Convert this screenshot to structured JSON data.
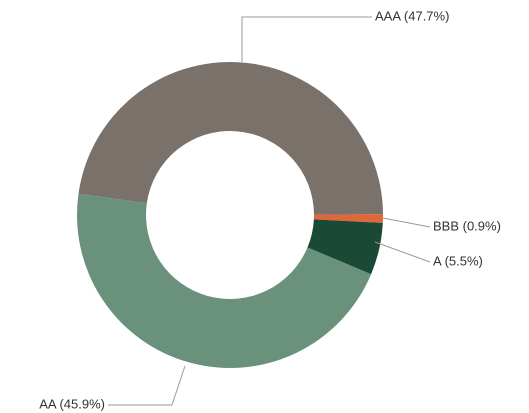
{
  "chart_data": {
    "type": "donut",
    "categories": [
      "AAA",
      "BBB",
      "A",
      "AA"
    ],
    "values": [
      47.7,
      0.9,
      5.5,
      45.9
    ],
    "value_labels": [
      "AAA (47.7%)",
      "BBB (0.9%)",
      "A (5.5%)",
      "AA (45.9%)"
    ],
    "colors": [
      "#7a716b",
      "#e0673a",
      "#1a4a35",
      "#6a917c"
    ]
  }
}
